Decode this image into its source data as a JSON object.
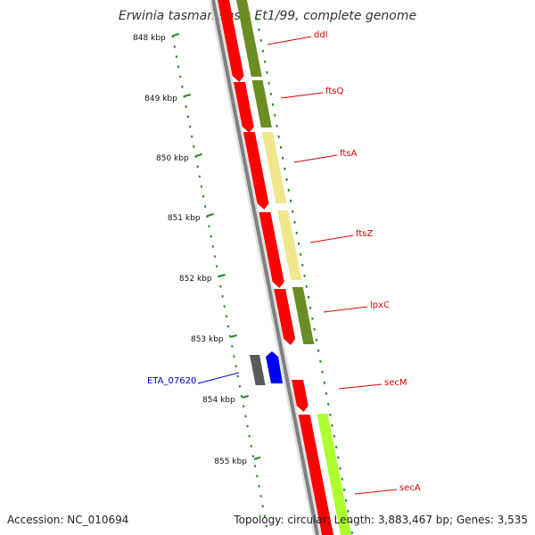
{
  "title_species": "Erwinia tasmaniensis",
  "title_rest": "Et1/99, complete genome",
  "scale_labels": [
    "848 kbp",
    "849 kbp",
    "850 kbp",
    "851 kbp",
    "852 kbp",
    "853 kbp",
    "854 kbp",
    "855 kbp"
  ],
  "genes": [
    {
      "name": "ddl",
      "color": "#6b8e23",
      "strand": "+"
    },
    {
      "name": "ftsQ",
      "color": "#6b8e23",
      "strand": "+"
    },
    {
      "name": "ftsA",
      "color": "#f0e68c",
      "strand": "+"
    },
    {
      "name": "ftsZ",
      "color": "#f0e68c",
      "strand": "+"
    },
    {
      "name": "lpxC",
      "color": "#6b8e23",
      "strand": "+"
    },
    {
      "name": "secM",
      "color": "#ffffff",
      "strand": "+"
    },
    {
      "name": "secA",
      "color": "#adff2f",
      "strand": "+"
    },
    {
      "name": "ETA_07620",
      "color": "#0000ff",
      "strand": "-"
    }
  ],
  "colors": {
    "backbone": "#808080",
    "cds": "#ff0000",
    "label_red": "#e00000",
    "label_blue": "#0000cc",
    "ruler": "#228b22",
    "grey_feature": "#555555"
  },
  "footer": {
    "accession": "Accession: NC_010694",
    "topology": "Topology: circular; Length: 3,883,467 bp; Genes: 3,535"
  }
}
